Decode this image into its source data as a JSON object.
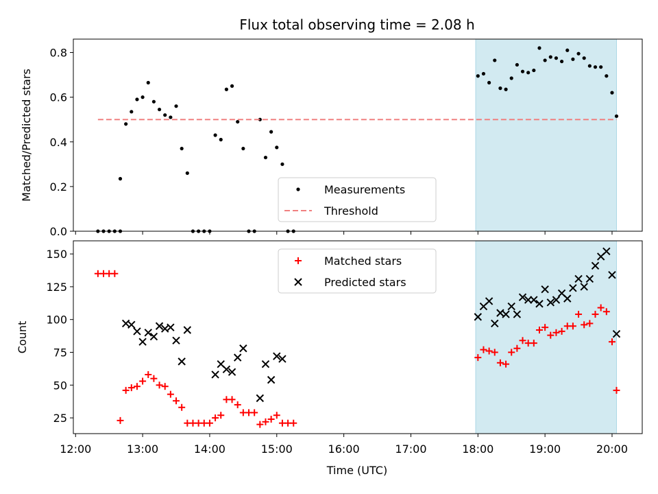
{
  "figure": {
    "title": "Flux total observing time = 2.08 h",
    "xlabel": "Time (UTC)"
  },
  "chart_data": [
    {
      "type": "scatter",
      "panel": "top",
      "ylabel": "Matched/Predicted stars",
      "xlim": [
        "11:58",
        "20:27"
      ],
      "ylim": [
        0,
        0.86
      ],
      "yticks": [
        0.0,
        0.2,
        0.4,
        0.6,
        0.8
      ],
      "ytick_labels": [
        "0.0",
        "0.2",
        "0.4",
        "0.6",
        "0.8"
      ],
      "grid": false,
      "legend_position": "lower-center",
      "shaded_interval": {
        "x": [
          "17:58",
          "20:04"
        ],
        "color": "#add8e6"
      },
      "series": [
        {
          "name": "Measurements",
          "marker": "dot",
          "color": "#000000",
          "x": [
            "12:20",
            "12:25",
            "12:30",
            "12:35",
            "12:40",
            "12:40",
            "12:45",
            "12:50",
            "12:55",
            "13:00",
            "13:05",
            "13:10",
            "13:15",
            "13:20",
            "13:25",
            "13:30",
            "13:35",
            "13:40",
            "13:45",
            "13:50",
            "13:55",
            "14:00",
            "14:05",
            "14:10",
            "14:15",
            "14:20",
            "14:25",
            "14:30",
            "14:35",
            "14:40",
            "14:45",
            "14:50",
            "14:55",
            "15:00",
            "15:05",
            "15:10",
            "15:15",
            "18:00",
            "18:05",
            "18:10",
            "18:15",
            "18:20",
            "18:25",
            "18:30",
            "18:35",
            "18:40",
            "18:45",
            "18:50",
            "18:55",
            "19:00",
            "19:05",
            "19:10",
            "19:15",
            "19:20",
            "19:25",
            "19:30",
            "19:35",
            "19:40",
            "19:45",
            "19:50",
            "19:55",
            "20:00",
            "20:04"
          ],
          "y": [
            0.0,
            0.0,
            0.0,
            0.0,
            0.0,
            0.235,
            0.48,
            0.535,
            0.59,
            0.6,
            0.665,
            0.58,
            0.545,
            0.52,
            0.51,
            0.56,
            0.37,
            0.26,
            0.0,
            0.0,
            0.0,
            0.0,
            0.43,
            0.41,
            0.635,
            0.65,
            0.49,
            0.37,
            0.0,
            0.0,
            0.5,
            0.33,
            0.445,
            0.375,
            0.3,
            0.0,
            0.0,
            0.695,
            0.705,
            0.665,
            0.765,
            0.64,
            0.635,
            0.685,
            0.745,
            0.715,
            0.71,
            0.72,
            0.82,
            0.765,
            0.78,
            0.775,
            0.76,
            0.81,
            0.77,
            0.795,
            0.775,
            0.74,
            0.735,
            0.735,
            0.695,
            0.62,
            0.515
          ]
        },
        {
          "name": "Threshold",
          "style": "dashed",
          "color": "#f08080",
          "x": [
            "12:20",
            "20:04"
          ],
          "y": [
            0.5,
            0.5
          ]
        }
      ]
    },
    {
      "type": "scatter",
      "panel": "bottom",
      "ylabel": "Count",
      "xlim": [
        "11:58",
        "20:27"
      ],
      "ylim": [
        13,
        160
      ],
      "yticks": [
        25,
        50,
        75,
        100,
        125,
        150
      ],
      "ytick_labels": [
        "25",
        "50",
        "75",
        "100",
        "125",
        "150"
      ],
      "xticks": [
        "12:00",
        "13:00",
        "14:00",
        "15:00",
        "16:00",
        "17:00",
        "18:00",
        "19:00",
        "20:00"
      ],
      "grid": false,
      "legend_position": "upper-center",
      "shaded_interval": {
        "x": [
          "17:58",
          "20:04"
        ],
        "color": "#add8e6"
      },
      "series": [
        {
          "name": "Matched stars",
          "marker": "plus",
          "color": "#ff0000",
          "x": [
            "12:20",
            "12:25",
            "12:30",
            "12:35",
            "12:40",
            "12:45",
            "12:50",
            "12:55",
            "13:00",
            "13:05",
            "13:10",
            "13:15",
            "13:20",
            "13:25",
            "13:30",
            "13:35",
            "13:40",
            "13:45",
            "13:50",
            "13:55",
            "14:00",
            "14:05",
            "14:10",
            "14:15",
            "14:20",
            "14:25",
            "14:30",
            "14:35",
            "14:40",
            "14:45",
            "14:50",
            "14:55",
            "15:00",
            "15:05",
            "15:10",
            "15:15",
            "18:00",
            "18:05",
            "18:10",
            "18:15",
            "18:20",
            "18:25",
            "18:30",
            "18:35",
            "18:40",
            "18:45",
            "18:50",
            "18:55",
            "19:00",
            "19:05",
            "19:10",
            "19:15",
            "19:20",
            "19:25",
            "19:30",
            "19:35",
            "19:40",
            "19:45",
            "19:50",
            "19:55",
            "20:00",
            "20:04"
          ],
          "y": [
            135,
            135,
            135,
            135,
            23,
            46,
            48,
            49,
            53,
            58,
            55,
            50,
            49,
            43,
            38,
            33,
            21,
            21,
            21,
            21,
            21,
            25,
            27,
            39,
            39,
            35,
            29,
            29,
            29,
            20,
            22,
            24,
            27,
            21,
            21,
            21,
            71,
            77,
            76,
            75,
            67,
            66,
            75,
            78,
            84,
            82,
            82,
            92,
            94,
            88,
            90,
            91,
            95,
            95,
            104,
            96,
            97,
            104,
            109,
            106,
            83,
            46
          ]
        },
        {
          "name": "Predicted stars",
          "marker": "x",
          "color": "#000000",
          "x": [
            "12:45",
            "12:50",
            "12:55",
            "13:00",
            "13:05",
            "13:10",
            "13:15",
            "13:20",
            "13:25",
            "13:30",
            "13:35",
            "13:40",
            "14:05",
            "14:10",
            "14:15",
            "14:20",
            "14:25",
            "14:30",
            "14:45",
            "14:50",
            "14:55",
            "15:00",
            "15:05",
            "18:00",
            "18:05",
            "18:10",
            "18:15",
            "18:20",
            "18:25",
            "18:30",
            "18:35",
            "18:40",
            "18:45",
            "18:50",
            "18:55",
            "19:00",
            "19:05",
            "19:10",
            "19:15",
            "19:20",
            "19:25",
            "19:30",
            "19:35",
            "19:40",
            "19:45",
            "19:50",
            "19:55",
            "20:00",
            "20:04"
          ],
          "y": [
            97,
            96,
            91,
            83,
            90,
            87,
            95,
            93,
            94,
            84,
            68,
            92,
            58,
            66,
            62,
            60,
            71,
            78,
            40,
            66,
            54,
            72,
            70,
            102,
            110,
            114,
            97,
            105,
            104,
            110,
            104,
            117,
            115,
            115,
            112,
            123,
            113,
            115,
            120,
            116,
            124,
            131,
            125,
            131,
            141,
            148,
            152,
            134,
            89
          ]
        }
      ]
    }
  ]
}
